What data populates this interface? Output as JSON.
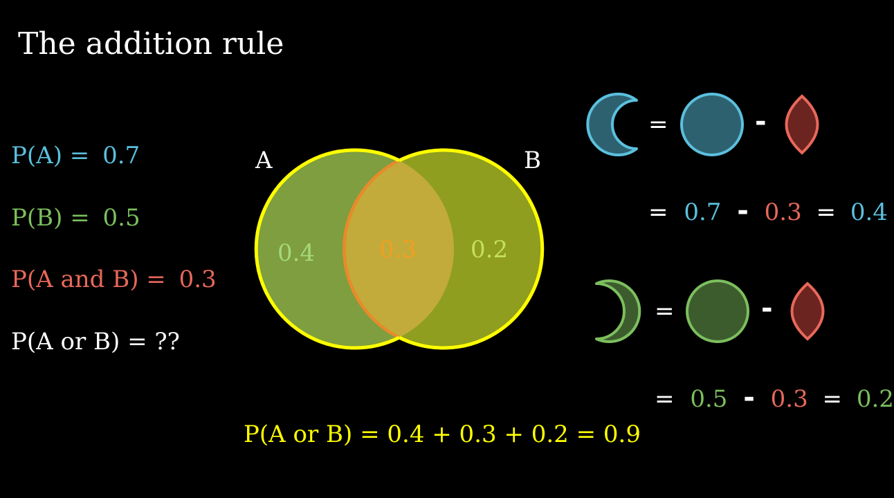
{
  "title": "The addition rule",
  "colors": {
    "a": "#5bc0de",
    "b": "#7cbf5e",
    "ab": "#e8685a",
    "or": "#ffff00",
    "text": "#ffffff"
  },
  "given": {
    "pa_label": "P(A) =",
    "pa_value": "0.7",
    "pb_label": "P(B) =",
    "pb_value": "0.5",
    "pab_label": "P(A and B) =",
    "pab_value": "0.3",
    "por_label": "P(A or B) = ??"
  },
  "venn": {
    "label_a": "A",
    "label_b": "B",
    "region_a_only": "0.4",
    "region_both": "0.3",
    "region_b_only": "0.2"
  },
  "rule_a": {
    "eq": "=",
    "minus": "-",
    "eq2": "=",
    "v1": "0.7",
    "minus2": "-",
    "v2": "0.3",
    "eq3": "=",
    "result": "0.4"
  },
  "rule_b": {
    "eq": "=",
    "minus": "-",
    "eq2": "=",
    "v1": "0.5",
    "minus2": "-",
    "v2": "0.3",
    "eq3": "=",
    "result": "0.2"
  },
  "final_equation": "P(A or B) = 0.4 + 0.3 + 0.2 = 0.9"
}
